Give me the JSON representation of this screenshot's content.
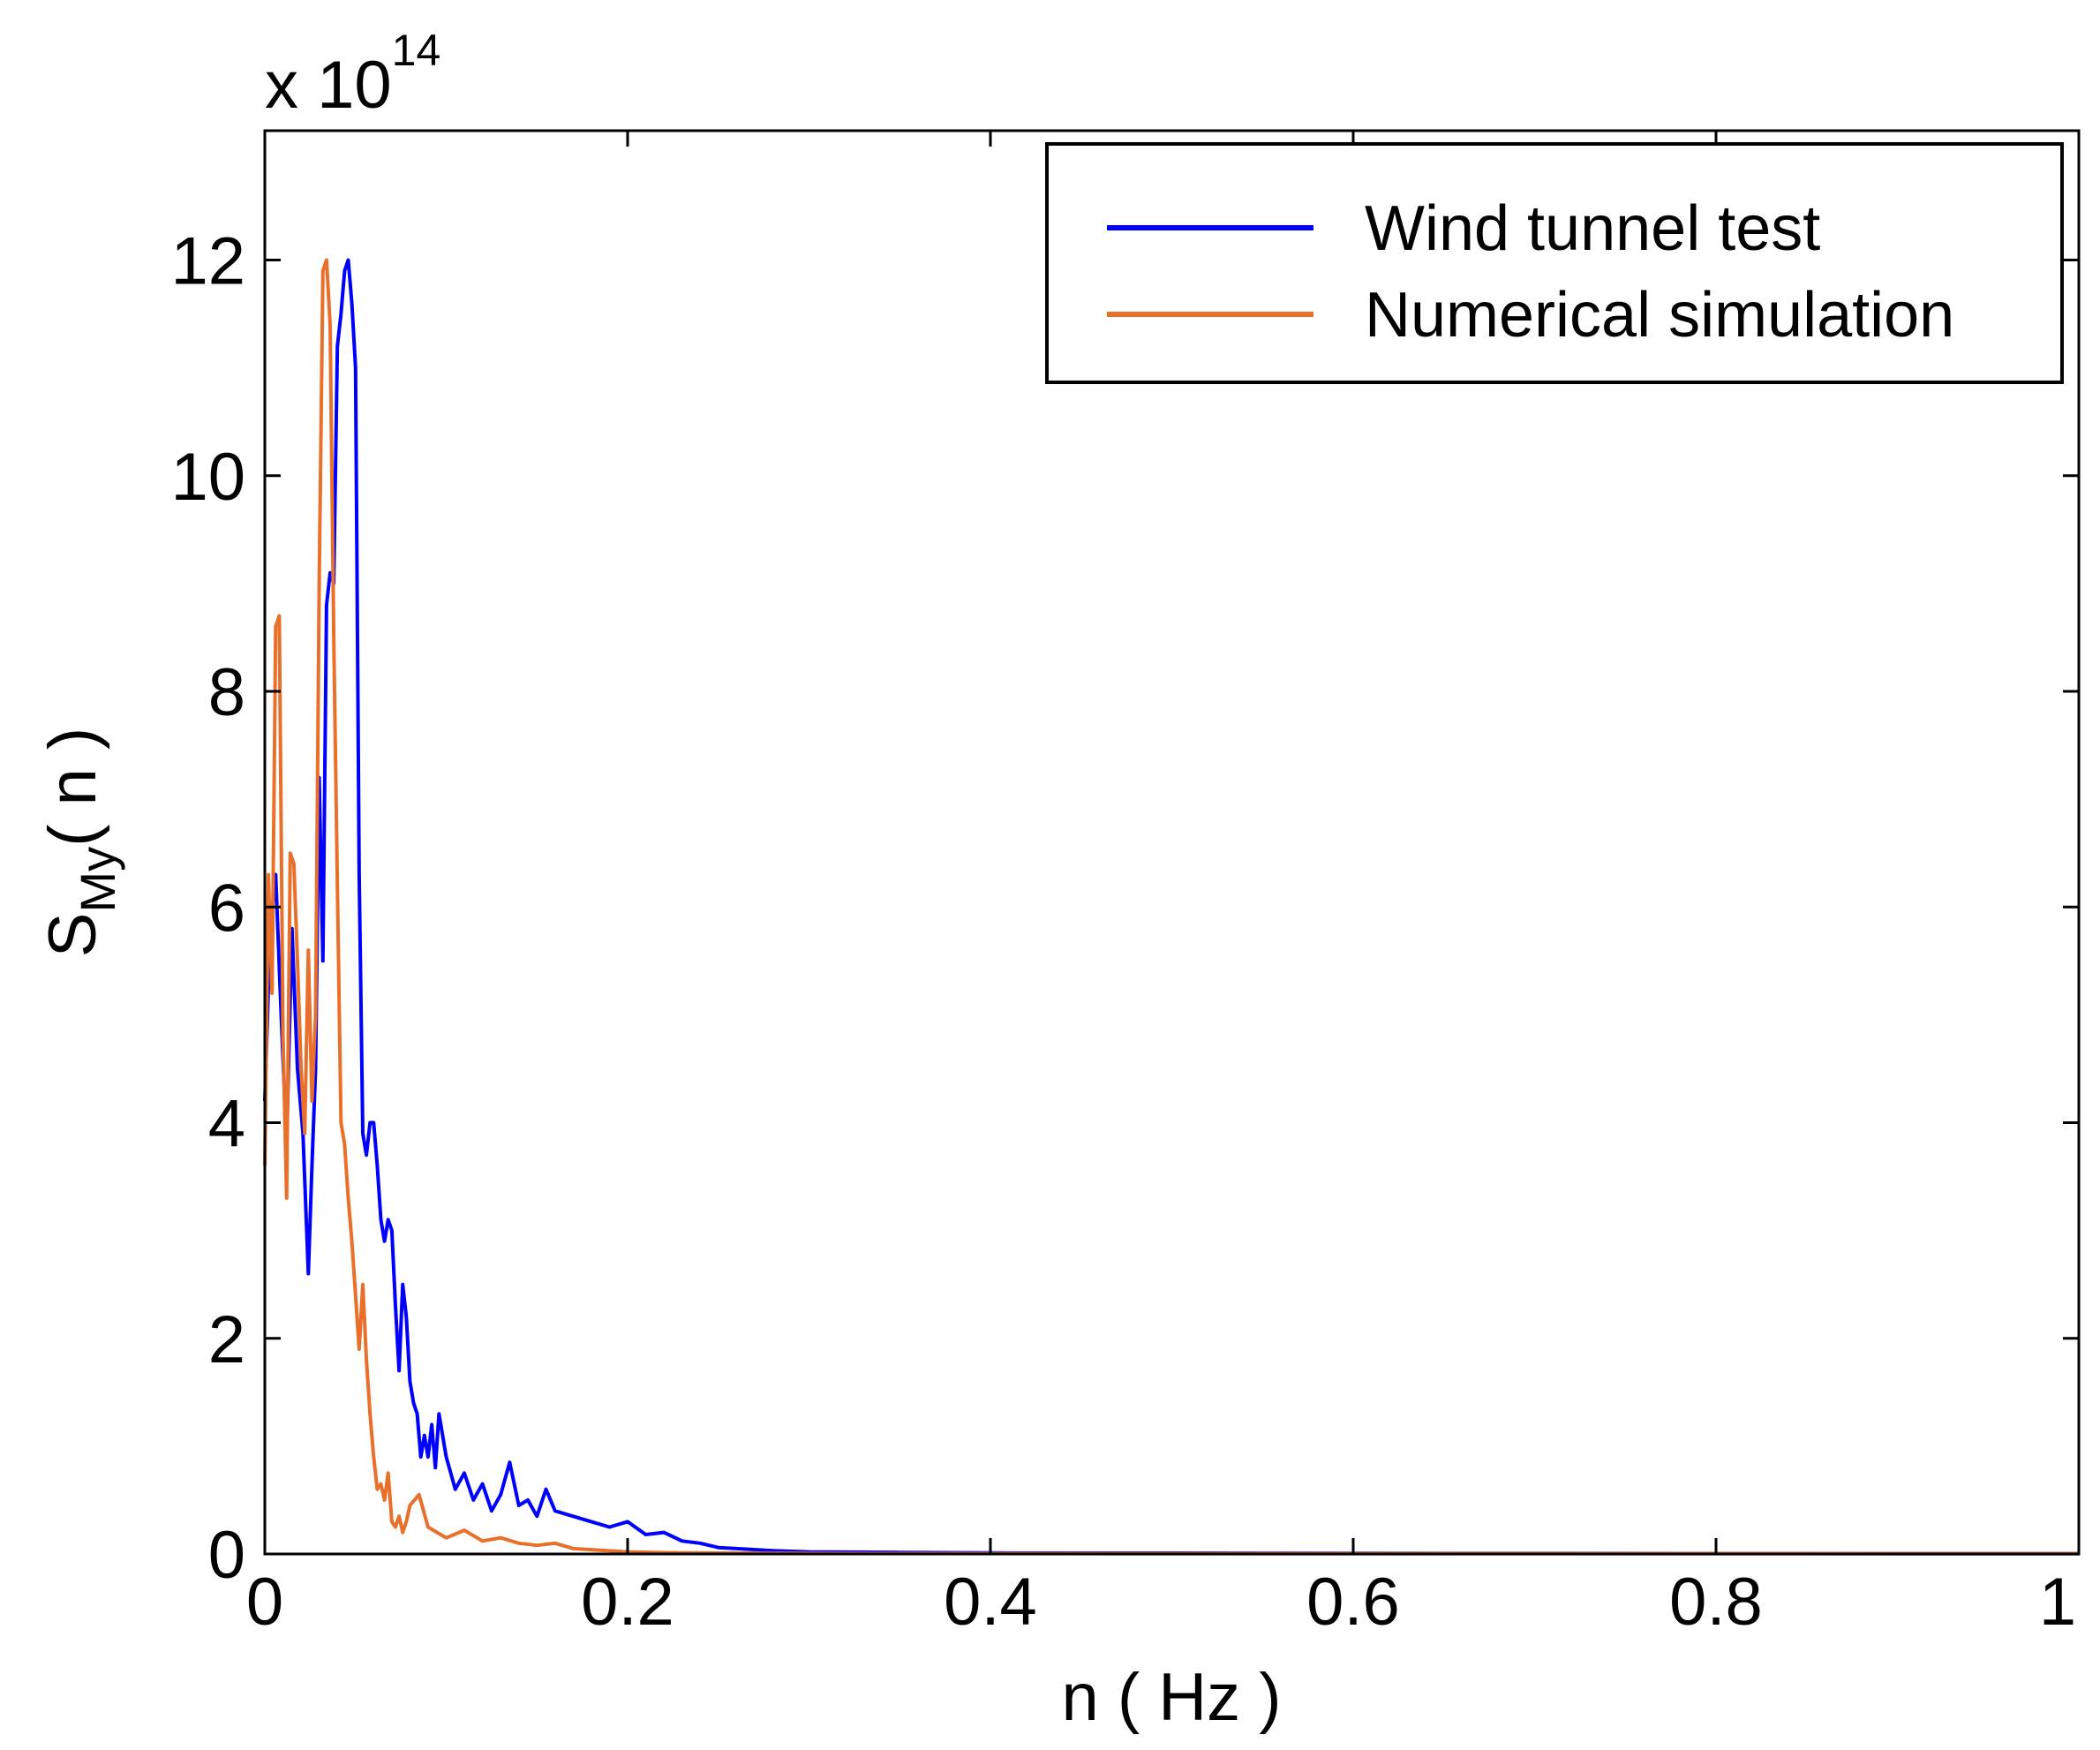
{
  "chart_data": {
    "type": "line",
    "title": "",
    "xlabel": "n ( Hz )",
    "ylabel": "S",
    "ylabel_subscript": "My",
    "ylabel_suffix": "( n )",
    "y_multiplier_base": "x 10",
    "y_multiplier_exponent": "14",
    "xlim": [
      0,
      1
    ],
    "ylim": [
      0,
      13.2
    ],
    "x_ticks": [
      0,
      0.2,
      0.4,
      0.6,
      0.8,
      1
    ],
    "x_tick_labels": [
      "0",
      "0.2",
      "0.4",
      "0.6",
      "0.8",
      "1"
    ],
    "y_ticks": [
      0,
      2,
      4,
      6,
      8,
      10,
      12
    ],
    "y_tick_labels": [
      "0",
      "2",
      "4",
      "6",
      "8",
      "10",
      "12"
    ],
    "grid": false,
    "legend_position": "top-right",
    "series": [
      {
        "name": "Wind tunnel test",
        "color": "#0000ff",
        "x": [
          0.0,
          0.003,
          0.006,
          0.009,
          0.012,
          0.015,
          0.018,
          0.021,
          0.024,
          0.026,
          0.028,
          0.03,
          0.032,
          0.034,
          0.036,
          0.038,
          0.04,
          0.042,
          0.044,
          0.046,
          0.048,
          0.05,
          0.052,
          0.054,
          0.056,
          0.058,
          0.06,
          0.062,
          0.064,
          0.066,
          0.068,
          0.07,
          0.072,
          0.074,
          0.076,
          0.078,
          0.08,
          0.082,
          0.084,
          0.086,
          0.088,
          0.09,
          0.092,
          0.094,
          0.096,
          0.1,
          0.105,
          0.11,
          0.115,
          0.12,
          0.125,
          0.13,
          0.135,
          0.14,
          0.145,
          0.15,
          0.155,
          0.16,
          0.17,
          0.18,
          0.19,
          0.2,
          0.21,
          0.22,
          0.23,
          0.24,
          0.25,
          0.26,
          0.28,
          0.3,
          0.35,
          0.4,
          0.5,
          0.6,
          0.7,
          0.8,
          0.9,
          1.0
        ],
        "y": [
          4.2,
          5.8,
          6.3,
          5.0,
          3.8,
          5.8,
          4.5,
          3.9,
          2.6,
          3.6,
          4.5,
          7.2,
          5.5,
          8.8,
          9.1,
          9.0,
          11.2,
          11.5,
          11.9,
          12.0,
          11.6,
          11.0,
          6.3,
          3.9,
          3.7,
          4.0,
          4.0,
          3.6,
          3.1,
          2.9,
          3.1,
          3.0,
          2.3,
          1.7,
          2.5,
          2.2,
          1.6,
          1.4,
          1.3,
          0.9,
          1.1,
          0.9,
          1.2,
          0.8,
          1.3,
          0.9,
          0.6,
          0.75,
          0.5,
          0.65,
          0.4,
          0.55,
          0.85,
          0.45,
          0.5,
          0.35,
          0.6,
          0.4,
          0.35,
          0.3,
          0.25,
          0.3,
          0.18,
          0.2,
          0.12,
          0.1,
          0.06,
          0.05,
          0.03,
          0.02,
          0.015,
          0.01,
          0.008,
          0.006,
          0.005,
          0.004,
          0.003,
          0.003
        ]
      },
      {
        "name": "Numerical simulation",
        "color": "#e8702a",
        "x": [
          0.0,
          0.002,
          0.004,
          0.006,
          0.008,
          0.01,
          0.012,
          0.014,
          0.016,
          0.018,
          0.02,
          0.022,
          0.024,
          0.026,
          0.028,
          0.03,
          0.032,
          0.034,
          0.036,
          0.038,
          0.04,
          0.042,
          0.044,
          0.046,
          0.048,
          0.05,
          0.052,
          0.054,
          0.056,
          0.058,
          0.06,
          0.062,
          0.064,
          0.066,
          0.068,
          0.07,
          0.072,
          0.074,
          0.076,
          0.078,
          0.08,
          0.085,
          0.09,
          0.095,
          0.1,
          0.11,
          0.12,
          0.13,
          0.14,
          0.15,
          0.16,
          0.17,
          0.18,
          0.2,
          0.22,
          0.25,
          0.3,
          0.4,
          0.5,
          0.6,
          0.7,
          0.8,
          0.9,
          1.0
        ],
        "y": [
          3.6,
          6.3,
          5.2,
          8.6,
          8.7,
          4.8,
          3.3,
          6.5,
          6.4,
          5.5,
          4.5,
          3.9,
          5.6,
          4.2,
          5.0,
          9.0,
          11.9,
          12.0,
          11.4,
          8.5,
          6.2,
          4.0,
          3.8,
          3.3,
          2.9,
          2.4,
          1.9,
          2.5,
          1.8,
          1.3,
          0.9,
          0.6,
          0.65,
          0.5,
          0.75,
          0.3,
          0.25,
          0.35,
          0.2,
          0.3,
          0.45,
          0.55,
          0.25,
          0.2,
          0.15,
          0.22,
          0.12,
          0.15,
          0.1,
          0.08,
          0.1,
          0.05,
          0.04,
          0.02,
          0.012,
          0.008,
          0.005,
          0.004,
          0.003,
          0.003,
          0.003,
          0.003,
          0.003,
          0.003
        ]
      }
    ]
  }
}
